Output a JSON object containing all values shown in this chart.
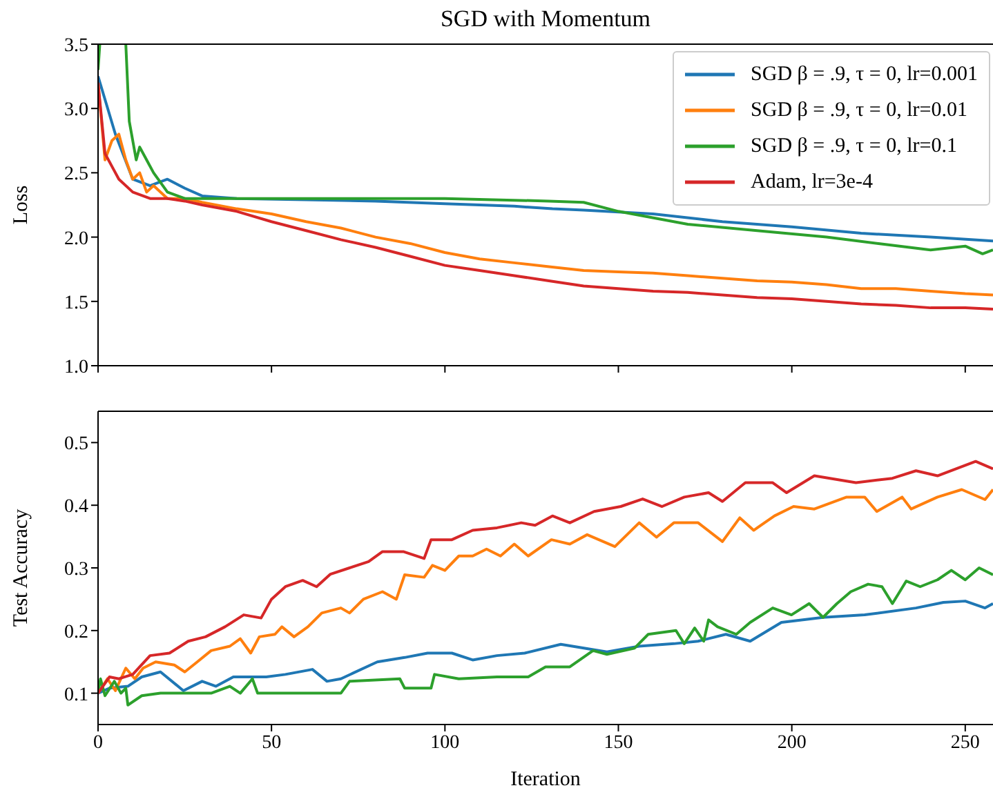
{
  "chart_data": [
    {
      "type": "line",
      "title": "SGD with Momentum",
      "ylabel": "Loss",
      "xlim": [
        0,
        258
      ],
      "xticks": [
        0,
        50,
        100,
        150,
        200,
        250
      ],
      "ylim": [
        1.0,
        3.5
      ],
      "yticks": [
        {
          "value": 1.0,
          "label": "1.0"
        },
        {
          "value": 1.5,
          "label": "1.5"
        },
        {
          "value": 2.0,
          "label": "2.0"
        },
        {
          "value": 2.5,
          "label": "2.5"
        },
        {
          "value": 3.0,
          "label": "3.0"
        },
        {
          "value": 3.5,
          "label": "3.5"
        }
      ],
      "tick_labels": "y",
      "legend": "top right",
      "line_style": "solid",
      "marker": "none",
      "series": [
        {
          "name": "SGD β = .9, τ = 0, lr=0.001",
          "color": "#1f77b4",
          "x": [
            0,
            5,
            10,
            15,
            20,
            25,
            30,
            40,
            60,
            80,
            100,
            120,
            131,
            140,
            160,
            180,
            200,
            220,
            240,
            258
          ],
          "values": [
            3.25,
            2.8,
            2.45,
            2.4,
            2.45,
            2.38,
            2.32,
            2.3,
            2.29,
            2.28,
            2.26,
            2.24,
            2.22,
            2.21,
            2.18,
            2.12,
            2.08,
            2.03,
            2.0,
            1.97
          ]
        },
        {
          "name": "SGD β = .9, τ = 0, lr=0.01",
          "color": "#ff7f0e",
          "x": [
            0,
            2,
            4,
            6,
            8,
            10,
            12,
            14,
            16,
            20,
            25,
            30,
            40,
            50,
            60,
            70,
            80,
            90,
            100,
            110,
            120,
            130,
            140,
            150,
            160,
            170,
            180,
            190,
            200,
            210,
            220,
            230,
            240,
            250,
            258
          ],
          "values": [
            3.2,
            2.6,
            2.75,
            2.8,
            2.6,
            2.45,
            2.5,
            2.35,
            2.4,
            2.3,
            2.3,
            2.27,
            2.22,
            2.18,
            2.12,
            2.07,
            2.0,
            1.95,
            1.88,
            1.83,
            1.8,
            1.77,
            1.74,
            1.73,
            1.72,
            1.7,
            1.68,
            1.66,
            1.65,
            1.63,
            1.6,
            1.6,
            1.58,
            1.56,
            1.55
          ]
        },
        {
          "name": "SGD β = .9, τ = 0, lr=0.1",
          "color": "#2ca02c",
          "x": [
            0,
            0.5,
            1,
            8,
            9,
            11,
            12,
            14,
            16,
            20,
            25,
            40,
            60,
            80,
            100,
            130,
            140,
            150,
            170,
            190,
            210,
            225,
            240,
            250,
            255,
            258
          ],
          "values": [
            3.3,
            3.5,
            null,
            3.5,
            2.9,
            2.6,
            2.7,
            2.6,
            2.5,
            2.35,
            2.3,
            2.3,
            2.3,
            2.3,
            2.3,
            2.28,
            2.27,
            2.2,
            2.1,
            2.05,
            2.0,
            1.95,
            1.9,
            1.93,
            1.87,
            1.9
          ]
        },
        {
          "name": "Adam, lr=3e-4",
          "color": "#d62728",
          "x": [
            0,
            2,
            4,
            6,
            10,
            15,
            20,
            25,
            30,
            40,
            50,
            60,
            70,
            80,
            90,
            100,
            110,
            120,
            130,
            140,
            150,
            160,
            170,
            180,
            190,
            200,
            210,
            220,
            230,
            240,
            250,
            258
          ],
          "values": [
            3.2,
            2.65,
            2.55,
            2.45,
            2.35,
            2.3,
            2.3,
            2.28,
            2.25,
            2.2,
            2.12,
            2.05,
            1.98,
            1.92,
            1.85,
            1.78,
            1.74,
            1.7,
            1.66,
            1.62,
            1.6,
            1.58,
            1.57,
            1.55,
            1.53,
            1.52,
            1.5,
            1.48,
            1.47,
            1.45,
            1.45,
            1.44
          ]
        }
      ]
    },
    {
      "type": "line",
      "xlabel": "Iteration",
      "ylabel": "Test Accuracy",
      "xlim": [
        0,
        258
      ],
      "xticks": [
        0,
        50,
        100,
        150,
        200,
        250
      ],
      "ylim": [
        0.05,
        0.55
      ],
      "yticks": [
        0.1,
        0.2,
        0.3,
        0.4,
        0.5
      ],
      "line_style": "solid",
      "marker": "none",
      "series": [
        {
          "color": "#1f77b4",
          "x": [
            0,
            3.3,
            8.6,
            12.6,
            18,
            24.6,
            30,
            34,
            39,
            48.5,
            54,
            61.8,
            66,
            70,
            80.5,
            88.4,
            95,
            102,
            108,
            115,
            123,
            133.4,
            146.7,
            156,
            166,
            173,
            181,
            188,
            197,
            209,
            221,
            235.8,
            243.7,
            250,
            255.7,
            258
          ],
          "values": [
            0.1,
            0.108,
            0.111,
            0.126,
            0.134,
            0.104,
            0.119,
            0.111,
            0.126,
            0.126,
            0.13,
            0.138,
            0.119,
            0.123,
            0.15,
            0.157,
            0.164,
            0.164,
            0.153,
            0.16,
            0.164,
            0.178,
            0.166,
            0.175,
            0.179,
            0.183,
            0.194,
            0.183,
            0.213,
            0.221,
            0.225,
            0.236,
            0.245,
            0.247,
            0.236,
            0.243
          ]
        },
        {
          "color": "#ff7f0e",
          "x": [
            0,
            2.7,
            5,
            8,
            10.6,
            13,
            16.6,
            22,
            25,
            28.6,
            32.6,
            38,
            41,
            44,
            46.5,
            51,
            53,
            56.5,
            60.5,
            64.5,
            70,
            72.5,
            76.5,
            82,
            86,
            88.4,
            94,
            96.4,
            100,
            104,
            108,
            112,
            116,
            120,
            124,
            130.7,
            136,
            141,
            149,
            156,
            161,
            166,
            173,
            180,
            185,
            189,
            195,
            200.5,
            206.5,
            215.8,
            221,
            224.5,
            231.8,
            234.4,
            242,
            249,
            255.7,
            258
          ],
          "values": [
            0.1,
            0.123,
            0.104,
            0.14,
            0.123,
            0.14,
            0.15,
            0.145,
            0.134,
            0.15,
            0.168,
            0.175,
            0.187,
            0.164,
            0.19,
            0.194,
            0.206,
            0.19,
            0.206,
            0.228,
            0.236,
            0.228,
            0.25,
            0.262,
            0.25,
            0.289,
            0.285,
            0.304,
            0.296,
            0.319,
            0.319,
            0.33,
            0.319,
            0.338,
            0.319,
            0.345,
            0.338,
            0.353,
            0.334,
            0.372,
            0.349,
            0.372,
            0.372,
            0.342,
            0.38,
            0.36,
            0.383,
            0.398,
            0.394,
            0.413,
            0.413,
            0.39,
            0.413,
            0.394,
            0.413,
            0.425,
            0.409,
            0.425
          ]
        },
        {
          "color": "#2ca02c",
          "x": [
            0,
            0.7,
            2,
            4.7,
            6.6,
            8,
            8.6,
            12.6,
            18,
            32.6,
            38,
            41,
            44.5,
            46,
            70,
            72.5,
            87,
            88.4,
            96,
            97,
            104,
            115,
            124,
            129,
            136,
            142.7,
            146.7,
            154.7,
            158.6,
            166.6,
            169,
            172,
            174.6,
            176,
            178.6,
            184,
            188,
            194.5,
            199.9,
            205,
            209,
            213,
            217,
            222,
            226,
            229,
            233,
            237,
            242,
            246,
            250,
            254,
            258
          ],
          "values": [
            0.1,
            0.123,
            0.096,
            0.119,
            0.1,
            0.108,
            0.081,
            0.096,
            0.1,
            0.1,
            0.111,
            0.1,
            0.123,
            0.1,
            0.1,
            0.119,
            0.123,
            0.108,
            0.108,
            0.13,
            0.123,
            0.126,
            0.126,
            0.142,
            0.142,
            0.168,
            0.162,
            0.172,
            0.194,
            0.2,
            0.179,
            0.204,
            0.183,
            0.217,
            0.206,
            0.194,
            0.213,
            0.236,
            0.225,
            0.243,
            0.221,
            0.243,
            0.262,
            0.274,
            0.27,
            0.243,
            0.279,
            0.27,
            0.281,
            0.296,
            0.281,
            0.3,
            0.289
          ]
        },
        {
          "color": "#d62728",
          "x": [
            0,
            3.3,
            6,
            10,
            15,
            20.6,
            26,
            31,
            36.6,
            42,
            47,
            50,
            54,
            59,
            63,
            67,
            72.5,
            78,
            82,
            88,
            94,
            96,
            102,
            108,
            115,
            122,
            126,
            131,
            136,
            143,
            150.7,
            157,
            162.6,
            169,
            176,
            180,
            186.6,
            194.5,
            198.5,
            206.5,
            218.5,
            229,
            235.8,
            242,
            253,
            258
          ],
          "values": [
            0.1,
            0.126,
            0.123,
            0.13,
            0.16,
            0.164,
            0.183,
            0.19,
            0.206,
            0.225,
            0.22,
            0.25,
            0.27,
            0.28,
            0.27,
            0.29,
            0.3,
            0.31,
            0.326,
            0.326,
            0.315,
            0.345,
            0.345,
            0.36,
            0.364,
            0.372,
            0.368,
            0.383,
            0.372,
            0.39,
            0.398,
            0.41,
            0.398,
            0.413,
            0.42,
            0.406,
            0.436,
            0.436,
            0.42,
            0.447,
            0.436,
            0.443,
            0.455,
            0.447,
            0.47,
            0.458
          ]
        }
      ]
    }
  ]
}
